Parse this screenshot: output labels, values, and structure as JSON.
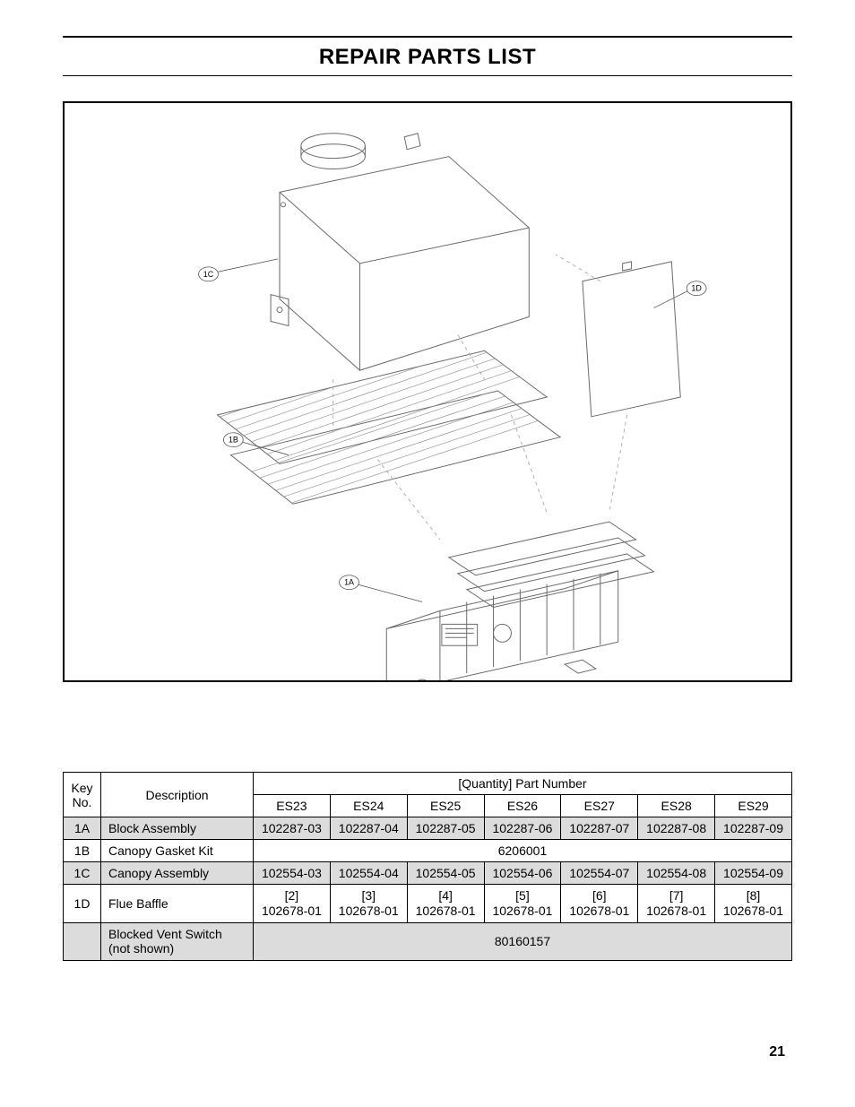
{
  "title": "REPAIR PARTS LIST",
  "page_number": "21",
  "diagram": {
    "callouts": [
      {
        "id": "1A",
        "label": "1A"
      },
      {
        "id": "1B",
        "label": "1B"
      },
      {
        "id": "1C",
        "label": "1C"
      },
      {
        "id": "1D",
        "label": "1D"
      }
    ],
    "stroke_color": "#6a6a6a",
    "hatch_color": "#8a8a8a",
    "guide_color": "#b0b0b0"
  },
  "table": {
    "header": {
      "key_no_line1": "Key",
      "key_no_line2": "No.",
      "description": "Description",
      "qty_part_header": "[Quantity] Part Number",
      "models": [
        "ES23",
        "ES24",
        "ES25",
        "ES26",
        "ES27",
        "ES28",
        "ES29"
      ]
    },
    "rows": [
      {
        "key": "1A",
        "shaded": true,
        "description": "Block Assembly",
        "cells": [
          "102287-03",
          "102287-04",
          "102287-05",
          "102287-06",
          "102287-07",
          "102287-08",
          "102287-09"
        ],
        "span": false
      },
      {
        "key": "1B",
        "shaded": false,
        "description": "Canopy Gasket Kit",
        "span": true,
        "span_value": "6206001"
      },
      {
        "key": "1C",
        "shaded": true,
        "description": "Canopy Assembly",
        "cells": [
          "102554-03",
          "102554-04",
          "102554-05",
          "102554-06",
          "102554-07",
          "102554-08",
          "102554-09"
        ],
        "span": false
      },
      {
        "key": "1D",
        "shaded": false,
        "description": "Flue Baffle",
        "cells_multiline": [
          {
            "qty": "[2]",
            "pn": "102678-01"
          },
          {
            "qty": "[3]",
            "pn": "102678-01"
          },
          {
            "qty": "[4]",
            "pn": "102678-01"
          },
          {
            "qty": "[5]",
            "pn": "102678-01"
          },
          {
            "qty": "[6]",
            "pn": "102678-01"
          },
          {
            "qty": "[7]",
            "pn": "102678-01"
          },
          {
            "qty": "[8]",
            "pn": "102678-01"
          }
        ],
        "span": false
      },
      {
        "key": "",
        "shaded": true,
        "description_multiline": [
          "Blocked Vent Switch",
          "(not shown)"
        ],
        "span": true,
        "span_value": "80160157"
      }
    ]
  }
}
